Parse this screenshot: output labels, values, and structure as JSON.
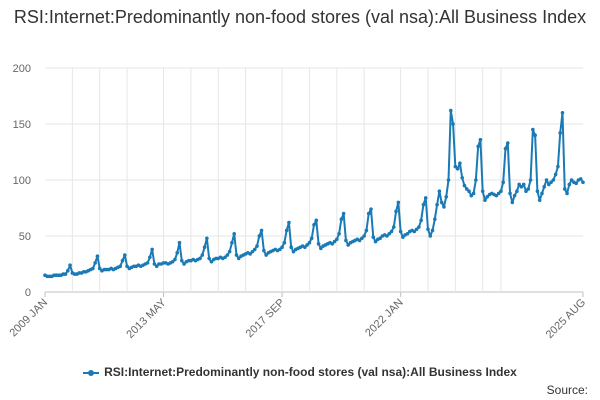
{
  "chart_data": {
    "type": "line",
    "title": "RSI:Internet:Predominantly non-food stores (val nsa):All Business Index",
    "xlabel": "",
    "ylabel": "",
    "x_range": [
      "2009 JAN",
      "2025 AUG"
    ],
    "x_tick_labels": [
      "2009 JAN",
      "2013 MAY",
      "2017 SEP",
      "2022 JAN",
      "2025 AUG"
    ],
    "ylim": [
      0,
      200
    ],
    "y_ticks": [
      0,
      50,
      100,
      150,
      200
    ],
    "grid": true,
    "legend_position": "bottom",
    "series": [
      {
        "name": "RSI:Internet:Predominantly non-food stores (val nsa):All Business Index",
        "color": "#1a7ab5",
        "start": "2009-01",
        "values": [
          15,
          14,
          14,
          14,
          15,
          15,
          15,
          15,
          16,
          16,
          19,
          24,
          17,
          16,
          16,
          17,
          17,
          18,
          18,
          19,
          20,
          21,
          26,
          32,
          21,
          19,
          20,
          20,
          20,
          21,
          20,
          21,
          22,
          23,
          28,
          33,
          23,
          21,
          22,
          23,
          23,
          24,
          23,
          24,
          25,
          26,
          31,
          38,
          25,
          23,
          25,
          25,
          26,
          26,
          25,
          26,
          27,
          29,
          35,
          44,
          28,
          25,
          27,
          28,
          28,
          29,
          28,
          29,
          30,
          33,
          40,
          48,
          30,
          27,
          29,
          30,
          30,
          31,
          30,
          31,
          33,
          36,
          44,
          52,
          33,
          30,
          32,
          33,
          34,
          35,
          34,
          36,
          38,
          41,
          50,
          55,
          37,
          33,
          35,
          36,
          37,
          38,
          37,
          38,
          40,
          44,
          55,
          62,
          40,
          36,
          38,
          39,
          40,
          41,
          40,
          42,
          44,
          48,
          60,
          64,
          43,
          39,
          41,
          42,
          43,
          44,
          43,
          45,
          47,
          52,
          65,
          70,
          46,
          42,
          44,
          45,
          46,
          47,
          46,
          48,
          50,
          55,
          70,
          74,
          49,
          45,
          47,
          48,
          50,
          51,
          50,
          52,
          54,
          58,
          72,
          80,
          54,
          49,
          51,
          52,
          54,
          55,
          54,
          56,
          58,
          64,
          78,
          84,
          56,
          50,
          55,
          65,
          78,
          90,
          80,
          76,
          85,
          100,
          162,
          150,
          112,
          110,
          115,
          102,
          95,
          92,
          90,
          86,
          88,
          100,
          130,
          136,
          90,
          82,
          85,
          87,
          88,
          87,
          86,
          88,
          90,
          98,
          128,
          133,
          88,
          80,
          86,
          90,
          96,
          94,
          96,
          90,
          92,
          100,
          145,
          140,
          90,
          82,
          88,
          94,
          100,
          96,
          98,
          100,
          105,
          112,
          142,
          160,
          92,
          88,
          96,
          100,
          98,
          97,
          100,
          101,
          98
        ]
      }
    ]
  },
  "legend": {
    "label": "RSI:Internet:Predominantly non-food stores (val nsa):All Business Index"
  },
  "source": {
    "label": "Source:"
  }
}
